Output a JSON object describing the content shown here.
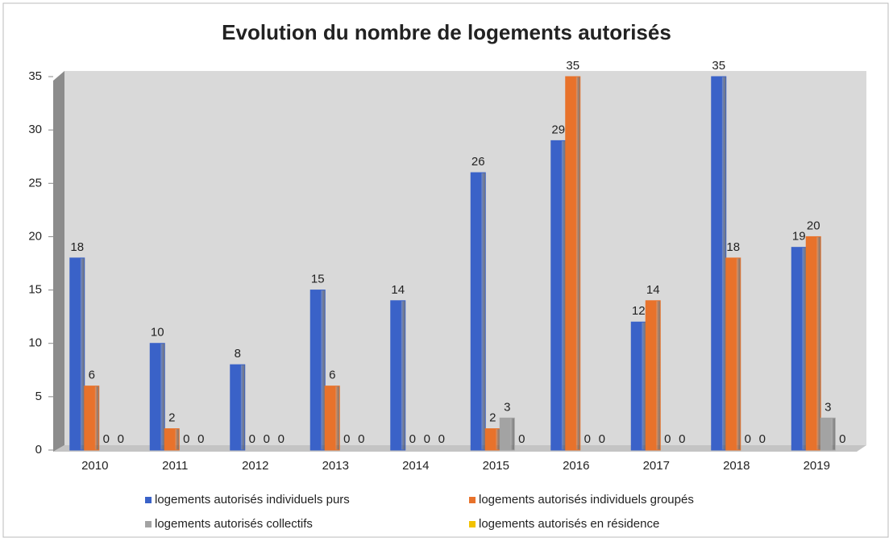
{
  "chart_data": {
    "type": "bar",
    "title": "Evolution du nombre de logements autorisés",
    "categories": [
      "2010",
      "2011",
      "2012",
      "2013",
      "2014",
      "2015",
      "2016",
      "2017",
      "2018",
      "2019"
    ],
    "series": [
      {
        "name": "logements autorisés individuels purs",
        "color": "#3a62c8",
        "values": [
          18,
          10,
          8,
          15,
          14,
          26,
          29,
          12,
          35,
          19
        ]
      },
      {
        "name": "logements autorisés individuels groupés",
        "color": "#e8722b",
        "values": [
          6,
          2,
          0,
          6,
          0,
          2,
          35,
          14,
          18,
          20
        ]
      },
      {
        "name": "logements autorisés collectifs",
        "color": "#a3a3a3",
        "values": [
          0,
          0,
          0,
          0,
          0,
          3,
          0,
          0,
          0,
          3
        ]
      },
      {
        "name": "logements autorisés en résidence",
        "color": "#f2c200",
        "values": [
          0,
          0,
          0,
          0,
          0,
          0,
          0,
          0,
          0,
          0
        ]
      }
    ],
    "ylim": [
      0,
      35
    ],
    "yticks": [
      0,
      5,
      10,
      15,
      20,
      25,
      30,
      35
    ],
    "legend": "bottom"
  }
}
